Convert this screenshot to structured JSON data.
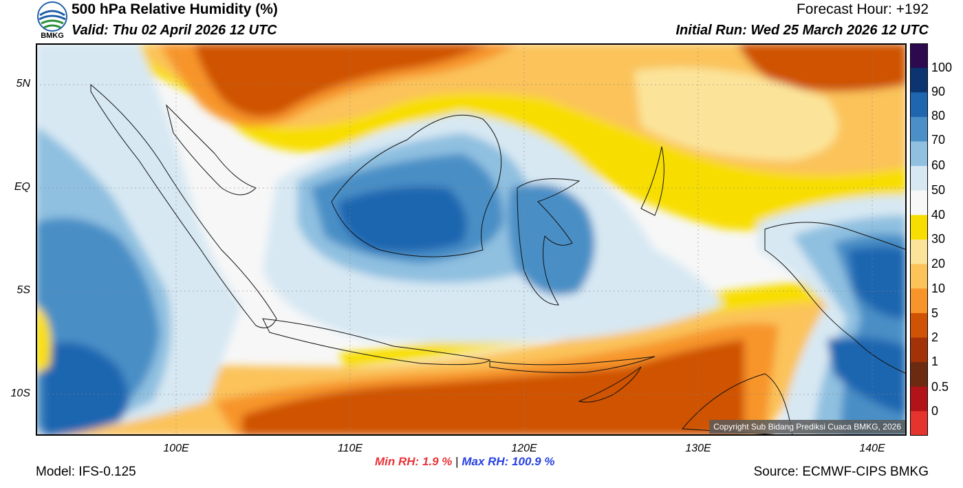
{
  "header": {
    "title": "500 hPa Relative Humidity (%)",
    "valid": "Valid: Thu 02 April 2026 12 UTC",
    "forecast_hour": "Forecast Hour: +192",
    "initial_run": "Initial Run: Wed 25 March 2026 12 UTC",
    "logo_text": "BMKG"
  },
  "map": {
    "lat_labels": [
      "5N",
      "EQ",
      "5S",
      "10S"
    ],
    "lon_labels": [
      "100E",
      "110E",
      "120E",
      "130E",
      "140E"
    ],
    "copyright": "Copyright Sub Bidang Prediksi Cuaca BMKG, 2026"
  },
  "colorbar": {
    "labels": [
      "100",
      "90",
      "80",
      "70",
      "60",
      "50",
      "40",
      "30",
      "20",
      "10",
      "5",
      "2",
      "1",
      "0.5",
      "0"
    ],
    "colors": [
      "#2d0a4e",
      "#0b3470",
      "#1e66b0",
      "#4a8fc6",
      "#8fc0e0",
      "#d7e8f3",
      "#f7f7f7",
      "#f8de00",
      "#fbe49a",
      "#fbc35a",
      "#f7952a",
      "#cf5205",
      "#a33208",
      "#6c2a10",
      "#b11318",
      "#e4342d"
    ]
  },
  "footer": {
    "min_label": "Min RH:",
    "min_value": "1.9 %",
    "separator": "|",
    "max_label": "Max RH:",
    "max_value": "100.9 %",
    "model": "Model: IFS-0.125",
    "source": "Source: ECMWF-CIPS BMKG"
  }
}
